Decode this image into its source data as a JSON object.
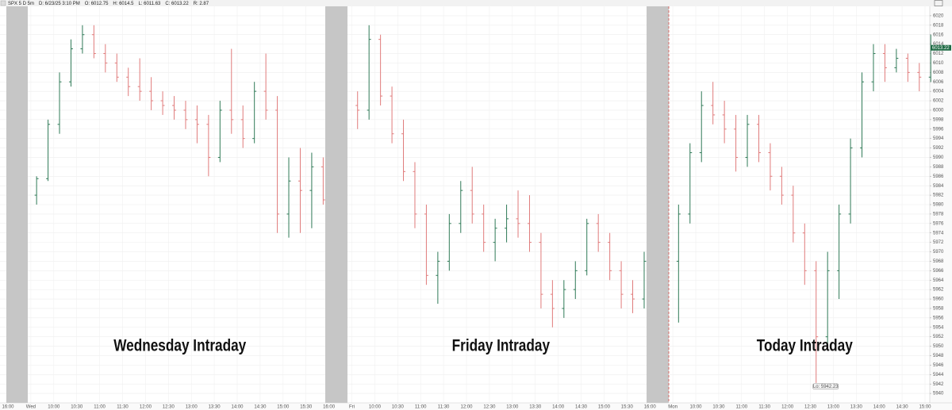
{
  "header": [
    "SPX 5 D 5m",
    "D: 6/23/25 3:10 PM",
    "O: 6012.75",
    "H: 6014.5",
    "L: 6011.63",
    "C: 6013.22",
    "R: 2.87"
  ],
  "chart_data": {
    "type": "ohlc",
    "x_labels": [
      "16:00",
      "Wed",
      "10:00",
      "10:30",
      "11:00",
      "11:30",
      "12:00",
      "12:30",
      "13:00",
      "13:30",
      "14:00",
      "14:30",
      "15:00",
      "15:30",
      "16:00",
      "Fri",
      "10:00",
      "10:30",
      "11:00",
      "11:30",
      "12:00",
      "12:30",
      "13:00",
      "13:30",
      "14:00",
      "14:30",
      "15:00",
      "15:30",
      "16:00",
      "Mon",
      "10:00",
      "10:30",
      "11:00",
      "11:30",
      "12:00",
      "12:30",
      "13:00",
      "13:30",
      "14:00",
      "14:30",
      "15:00"
    ],
    "ylim": [
      5938,
      6022
    ],
    "yticks": [
      5940,
      5942,
      5944,
      5946,
      5948,
      5950,
      5952,
      5954,
      5956,
      5958,
      5960,
      5962,
      5964,
      5966,
      5968,
      5970,
      5972,
      5974,
      5976,
      5978,
      5980,
      5982,
      5984,
      5986,
      5988,
      5990,
      5992,
      5994,
      5996,
      5998,
      6000,
      6002,
      6004,
      6006,
      6008,
      6010,
      6012,
      6014,
      6016,
      6018,
      6020
    ],
    "grid": true,
    "up_color": "#2f7a57",
    "down_color": "#e07b7b",
    "low_label": "Lo: 5942.23",
    "sessions": [
      {
        "title": "Wednesday Intraday",
        "open": [
          5982,
          5985.5,
          5997,
          6006,
          6013,
          6016,
          6012,
          6010,
          6007,
          6005,
          6004,
          6002,
          6001,
          6000,
          5998,
          5997,
          5990,
          6000,
          5998,
          5994,
          6004,
          6000,
          5978,
          5985,
          5983,
          5988
        ],
        "high": [
          5986,
          5998,
          6008,
          6015,
          6018,
          6018,
          6014,
          6012,
          6009,
          6011,
          6007,
          6004,
          6003,
          6002,
          6001,
          5999,
          6002,
          6013,
          6001,
          6006,
          6012,
          6003,
          5990,
          5992,
          5991,
          5990
        ],
        "low": [
          5980,
          5985,
          5995,
          6005,
          6012,
          6011,
          6008,
          6006,
          6003,
          6002,
          6000,
          5999,
          5998,
          5996,
          5993,
          5986,
          5989,
          5995,
          5992,
          5993,
          5998,
          5974,
          5973,
          5974,
          5975,
          5980
        ],
        "close": [
          5985.5,
          5997,
          6006,
          6013,
          6016,
          6012,
          6010,
          6007,
          6005,
          6004,
          6002,
          6001,
          6000,
          5998,
          5997,
          5990,
          6000,
          5998,
          5994,
          6004,
          6000,
          5978,
          5985,
          5983,
          5988,
          5981
        ]
      },
      {
        "title": "Friday Intraday",
        "open": [
          6001,
          6000,
          6015,
          6003,
          5995,
          5987,
          5978,
          5965,
          5968,
          5976,
          5983,
          5978,
          5972,
          5975,
          5977,
          5976,
          5972,
          5961,
          5958,
          5962,
          5966,
          5976,
          5972,
          5966,
          5961,
          5960
        ],
        "high": [
          6004,
          6018,
          6016,
          6005,
          5998,
          5989,
          5980,
          5970,
          5978,
          5985,
          5988,
          5980,
          5977,
          5980,
          5983,
          5982,
          5974,
          5964,
          5964,
          5968,
          5977,
          5978,
          5974,
          5968,
          5964,
          5970
        ],
        "low": [
          5996,
          5998,
          6001,
          5993,
          5985,
          5975,
          5963,
          5959,
          5966,
          5974,
          5976,
          5970,
          5968,
          5972,
          5973,
          5970,
          5958,
          5954,
          5956,
          5960,
          5965,
          5970,
          5964,
          5958,
          5957,
          5958
        ],
        "close": [
          6000,
          6015,
          6003,
          5995,
          5987,
          5978,
          5965,
          5968,
          5976,
          5983,
          5978,
          5972,
          5975,
          5977,
          5976,
          5972,
          5961,
          5958,
          5962,
          5966,
          5976,
          5972,
          5966,
          5961,
          5960,
          5968
        ]
      },
      {
        "title": "Today Intraday",
        "open": [
          5968,
          5978,
          5991,
          6001,
          5999,
          5996,
          5990,
          5997,
          5991,
          5986,
          5982,
          5974,
          5966,
          5952,
          5966,
          5978,
          5992,
          6006,
          6012,
          6009,
          6011,
          6008,
          6007
        ],
        "high": [
          5980,
          5993,
          6004,
          6006,
          6002,
          5999,
          5999,
          5999,
          5993,
          5988,
          5984,
          5976,
          5968,
          5970,
          5980,
          5994,
          6008,
          6014,
          6014,
          6013,
          6012,
          6010,
          6016
        ],
        "low": [
          5955,
          5976,
          5989,
          5997,
          5993,
          5987,
          5988,
          5989,
          5983,
          5980,
          5972,
          5963,
          5942.23,
          5950,
          5960,
          5976,
          5990,
          6004,
          6006,
          6008,
          6006,
          6004,
          6006
        ],
        "close": [
          5978,
          5991,
          6001,
          5999,
          5996,
          5990,
          5997,
          5991,
          5986,
          5982,
          5974,
          5966,
          5952,
          5966,
          5978,
          5992,
          6006,
          6012,
          6009,
          6011,
          6008,
          6007,
          6013.22
        ]
      }
    ]
  }
}
